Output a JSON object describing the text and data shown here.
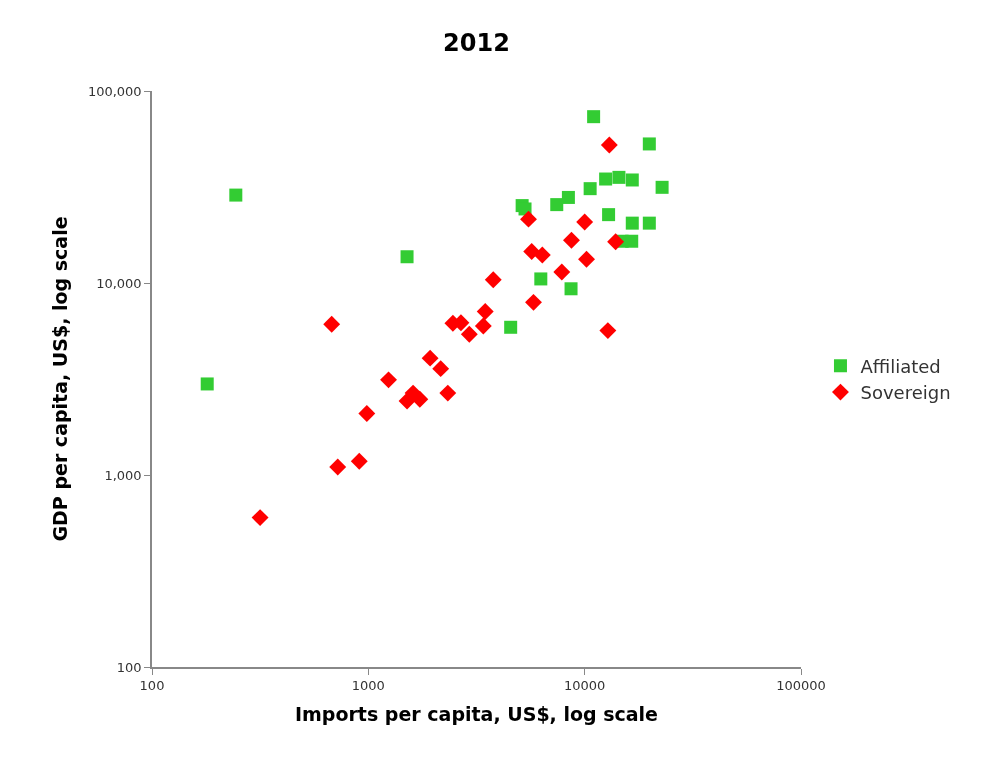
{
  "chart_data": {
    "type": "scatter",
    "title": "2012",
    "xlabel": "Imports per capita, US$, log scale",
    "ylabel": "GDP per capita, US$, log scale",
    "log": "xy",
    "legend": "right",
    "xlim": [
      100,
      100000
    ],
    "ylim": [
      100,
      100000
    ],
    "xticks": [
      100,
      1000,
      10000,
      100000
    ],
    "yticks": [
      {
        "value": 100,
        "label": "100"
      },
      {
        "value": 1000,
        "label": "1,000"
      },
      {
        "value": 10000,
        "label": "10,000"
      },
      {
        "value": 100000,
        "label": "100,000"
      }
    ],
    "series": [
      {
        "name": "Affiliated",
        "color": "#33cc33",
        "marker": "square",
        "x": [
          244,
          180,
          1510,
          11000,
          19900,
          22800,
          5140,
          5300,
          7430,
          8410,
          10600,
          12500,
          14400,
          16600,
          12900,
          16600,
          19900,
          14900,
          16500,
          6270,
          8650,
          4550
        ],
        "values": [
          28700,
          2980,
          13700,
          73500,
          53000,
          31500,
          25300,
          24300,
          25600,
          27900,
          31000,
          34800,
          35500,
          34400,
          22700,
          20500,
          20500,
          16500,
          16500,
          10500,
          9330,
          5880
        ]
      },
      {
        "name": "Sovereign",
        "color": "#ff0000",
        "marker": "diamond",
        "x": [
          316,
          677,
          722,
          908,
          984,
          1240,
          1510,
          1610,
          1730,
          1930,
          2160,
          2330,
          2460,
          2680,
          2930,
          3400,
          3470,
          3780,
          5800,
          5500,
          5690,
          6370,
          7840,
          8690,
          10000,
          10200,
          12800,
          13000,
          13900
        ],
        "values": [
          600,
          6100,
          1100,
          1180,
          2090,
          3130,
          2430,
          2670,
          2480,
          4060,
          3580,
          2670,
          6170,
          6210,
          5410,
          5970,
          7100,
          10400,
          7930,
          21500,
          14600,
          14000,
          11400,
          16700,
          20800,
          13300,
          5650,
          52300,
          16400
        ]
      }
    ]
  }
}
